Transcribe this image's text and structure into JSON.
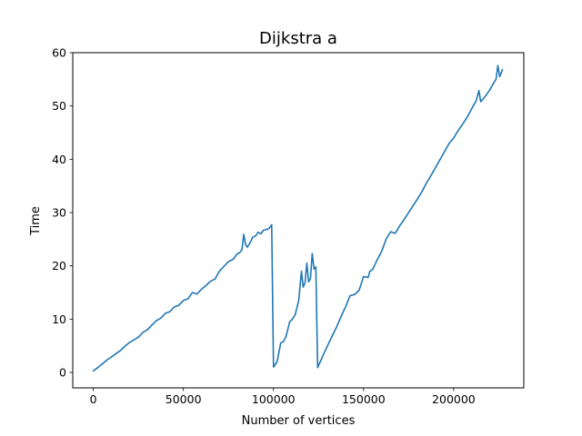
{
  "chart_data": {
    "type": "line",
    "title": "Dijkstra a",
    "xlabel": "Number of vertices",
    "ylabel": "Time",
    "xlim": [
      -11400,
      238900
    ],
    "ylim": [
      -2.9,
      60.0
    ],
    "xticks": [
      0,
      50000,
      100000,
      150000,
      200000
    ],
    "xtick_labels": [
      "0",
      "50000",
      "100000",
      "150000",
      "200000"
    ],
    "yticks": [
      0,
      10,
      20,
      30,
      40,
      50,
      60
    ],
    "ytick_labels": [
      "0",
      "10",
      "20",
      "30",
      "40",
      "50",
      "60"
    ],
    "grid": false,
    "legend": "none",
    "series": [
      {
        "color": "#1f77b4",
        "x": [
          0,
          2500,
          5000,
          7500,
          10000,
          12500,
          15000,
          17500,
          20000,
          22500,
          25000,
          27500,
          30000,
          32500,
          35000,
          37500,
          40000,
          42500,
          45000,
          47500,
          50000,
          52500,
          55000,
          57500,
          60000,
          62500,
          65000,
          67500,
          70000,
          72500,
          75000,
          77500,
          80000,
          81000,
          82500,
          83500,
          84500,
          85500,
          87000,
          88500,
          90000,
          91500,
          93000,
          94500,
          96000,
          97500,
          99000,
          100000,
          102000,
          104000,
          105500,
          107000,
          109000,
          110500,
          112000,
          114000,
          115500,
          116500,
          117500,
          118500,
          119500,
          120500,
          121500,
          122500,
          123500,
          124500,
          125500,
          126500,
          127500,
          130000,
          132500,
          135000,
          137500,
          140000,
          142500,
          145000,
          147500,
          150000,
          152500,
          153500,
          155000,
          157500,
          160000,
          162500,
          165000,
          167500,
          168500,
          170000,
          172500,
          175000,
          177500,
          180000,
          182500,
          185000,
          187500,
          190000,
          192500,
          195000,
          197500,
          200000,
          202500,
          205000,
          207500,
          210000,
          212500,
          214000,
          215000,
          217500,
          220000,
          222500,
          223500,
          224500,
          225500,
          226500,
          227000
        ],
        "y": [
          0.3,
          0.9,
          1.6,
          2.3,
          2.9,
          3.5,
          4.1,
          4.9,
          5.6,
          6.1,
          6.6,
          7.5,
          8.0,
          8.9,
          9.7,
          10.2,
          11.1,
          11.4,
          12.3,
          12.6,
          13.5,
          13.8,
          15.0,
          14.7,
          15.6,
          16.3,
          17.1,
          17.5,
          19.0,
          19.9,
          20.8,
          21.2,
          22.3,
          22.4,
          23.0,
          25.9,
          24.0,
          23.5,
          24.3,
          25.4,
          25.6,
          26.3,
          26.0,
          26.7,
          26.8,
          27.0,
          27.7,
          1.0,
          2.0,
          5.5,
          5.8,
          6.8,
          9.5,
          10.0,
          10.8,
          13.5,
          19.0,
          16.0,
          16.8,
          20.5,
          17.0,
          17.6,
          22.3,
          19.4,
          19.8,
          0.9,
          1.7,
          2.4,
          3.2,
          5.0,
          6.8,
          8.5,
          10.5,
          12.3,
          14.4,
          14.6,
          15.4,
          18.0,
          17.8,
          19.0,
          19.3,
          21.1,
          22.7,
          25.0,
          26.4,
          26.1,
          26.6,
          27.5,
          28.7,
          30.0,
          31.3,
          32.6,
          34.0,
          35.6,
          37.0,
          38.5,
          40.0,
          41.5,
          43.0,
          44.0,
          45.4,
          46.6,
          47.9,
          49.5,
          51.0,
          52.9,
          50.8,
          51.8,
          53.0,
          54.5,
          55.0,
          57.6,
          55.5,
          56.3,
          56.8
        ]
      }
    ]
  }
}
